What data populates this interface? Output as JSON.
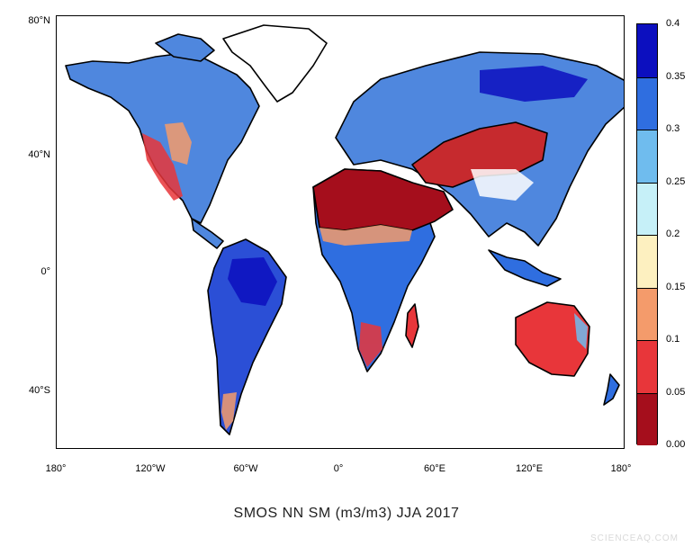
{
  "caption": "SMOS NN SM (m3/m3) JJA 2017",
  "watermark": "SCIENCEAQ.COM",
  "lat_ticks": [
    "80°N",
    "40°N",
    "0°",
    "40°S"
  ],
  "lon_ticks": [
    "180°",
    "120°W",
    "60°W",
    "0°",
    "60°E",
    "120°E",
    "180°"
  ],
  "colorbar": {
    "labels": [
      "0.00",
      "0.05",
      "0.1",
      "0.15",
      "0.2",
      "0.25",
      "0.3",
      "0.35",
      "0.4"
    ],
    "bins": [
      {
        "from": 0.0,
        "to": 0.05,
        "color": "#a50e1c"
      },
      {
        "from": 0.05,
        "to": 0.1,
        "color": "#e8363a"
      },
      {
        "from": 0.1,
        "to": 0.15,
        "color": "#f49b6b"
      },
      {
        "from": 0.15,
        "to": 0.2,
        "color": "#fdf0c0"
      },
      {
        "from": 0.2,
        "to": 0.25,
        "color": "#c6f0f8"
      },
      {
        "from": 0.25,
        "to": 0.3,
        "color": "#6fbcee"
      },
      {
        "from": 0.3,
        "to": 0.35,
        "color": "#2f6ee0"
      },
      {
        "from": 0.35,
        "to": 0.4,
        "color": "#0c0fbf"
      }
    ]
  }
}
